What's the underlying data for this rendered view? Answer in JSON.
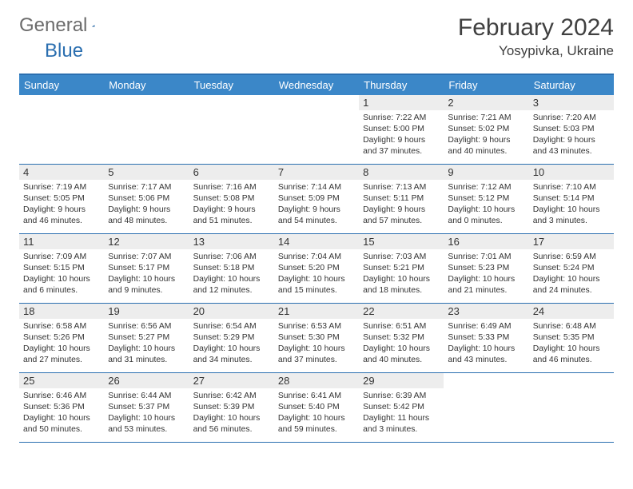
{
  "logo": {
    "part1": "General",
    "part2": "Blue"
  },
  "title": "February 2024",
  "location": "Yosypivka, Ukraine",
  "colors": {
    "header_bg": "#3b87c8",
    "header_text": "#ffffff",
    "border": "#2b6fb0",
    "daynum_bg": "#ededed",
    "text": "#333333",
    "logo_gray": "#6b6b6b",
    "logo_blue": "#2b6fb0",
    "background": "#ffffff"
  },
  "columns": [
    "Sunday",
    "Monday",
    "Tuesday",
    "Wednesday",
    "Thursday",
    "Friday",
    "Saturday"
  ],
  "weeks": [
    [
      {
        "n": "",
        "sr": "",
        "ss": "",
        "dl1": "",
        "dl2": ""
      },
      {
        "n": "",
        "sr": "",
        "ss": "",
        "dl1": "",
        "dl2": ""
      },
      {
        "n": "",
        "sr": "",
        "ss": "",
        "dl1": "",
        "dl2": ""
      },
      {
        "n": "",
        "sr": "",
        "ss": "",
        "dl1": "",
        "dl2": ""
      },
      {
        "n": "1",
        "sr": "Sunrise: 7:22 AM",
        "ss": "Sunset: 5:00 PM",
        "dl1": "Daylight: 9 hours",
        "dl2": "and 37 minutes."
      },
      {
        "n": "2",
        "sr": "Sunrise: 7:21 AM",
        "ss": "Sunset: 5:02 PM",
        "dl1": "Daylight: 9 hours",
        "dl2": "and 40 minutes."
      },
      {
        "n": "3",
        "sr": "Sunrise: 7:20 AM",
        "ss": "Sunset: 5:03 PM",
        "dl1": "Daylight: 9 hours",
        "dl2": "and 43 minutes."
      }
    ],
    [
      {
        "n": "4",
        "sr": "Sunrise: 7:19 AM",
        "ss": "Sunset: 5:05 PM",
        "dl1": "Daylight: 9 hours",
        "dl2": "and 46 minutes."
      },
      {
        "n": "5",
        "sr": "Sunrise: 7:17 AM",
        "ss": "Sunset: 5:06 PM",
        "dl1": "Daylight: 9 hours",
        "dl2": "and 48 minutes."
      },
      {
        "n": "6",
        "sr": "Sunrise: 7:16 AM",
        "ss": "Sunset: 5:08 PM",
        "dl1": "Daylight: 9 hours",
        "dl2": "and 51 minutes."
      },
      {
        "n": "7",
        "sr": "Sunrise: 7:14 AM",
        "ss": "Sunset: 5:09 PM",
        "dl1": "Daylight: 9 hours",
        "dl2": "and 54 minutes."
      },
      {
        "n": "8",
        "sr": "Sunrise: 7:13 AM",
        "ss": "Sunset: 5:11 PM",
        "dl1": "Daylight: 9 hours",
        "dl2": "and 57 minutes."
      },
      {
        "n": "9",
        "sr": "Sunrise: 7:12 AM",
        "ss": "Sunset: 5:12 PM",
        "dl1": "Daylight: 10 hours",
        "dl2": "and 0 minutes."
      },
      {
        "n": "10",
        "sr": "Sunrise: 7:10 AM",
        "ss": "Sunset: 5:14 PM",
        "dl1": "Daylight: 10 hours",
        "dl2": "and 3 minutes."
      }
    ],
    [
      {
        "n": "11",
        "sr": "Sunrise: 7:09 AM",
        "ss": "Sunset: 5:15 PM",
        "dl1": "Daylight: 10 hours",
        "dl2": "and 6 minutes."
      },
      {
        "n": "12",
        "sr": "Sunrise: 7:07 AM",
        "ss": "Sunset: 5:17 PM",
        "dl1": "Daylight: 10 hours",
        "dl2": "and 9 minutes."
      },
      {
        "n": "13",
        "sr": "Sunrise: 7:06 AM",
        "ss": "Sunset: 5:18 PM",
        "dl1": "Daylight: 10 hours",
        "dl2": "and 12 minutes."
      },
      {
        "n": "14",
        "sr": "Sunrise: 7:04 AM",
        "ss": "Sunset: 5:20 PM",
        "dl1": "Daylight: 10 hours",
        "dl2": "and 15 minutes."
      },
      {
        "n": "15",
        "sr": "Sunrise: 7:03 AM",
        "ss": "Sunset: 5:21 PM",
        "dl1": "Daylight: 10 hours",
        "dl2": "and 18 minutes."
      },
      {
        "n": "16",
        "sr": "Sunrise: 7:01 AM",
        "ss": "Sunset: 5:23 PM",
        "dl1": "Daylight: 10 hours",
        "dl2": "and 21 minutes."
      },
      {
        "n": "17",
        "sr": "Sunrise: 6:59 AM",
        "ss": "Sunset: 5:24 PM",
        "dl1": "Daylight: 10 hours",
        "dl2": "and 24 minutes."
      }
    ],
    [
      {
        "n": "18",
        "sr": "Sunrise: 6:58 AM",
        "ss": "Sunset: 5:26 PM",
        "dl1": "Daylight: 10 hours",
        "dl2": "and 27 minutes."
      },
      {
        "n": "19",
        "sr": "Sunrise: 6:56 AM",
        "ss": "Sunset: 5:27 PM",
        "dl1": "Daylight: 10 hours",
        "dl2": "and 31 minutes."
      },
      {
        "n": "20",
        "sr": "Sunrise: 6:54 AM",
        "ss": "Sunset: 5:29 PM",
        "dl1": "Daylight: 10 hours",
        "dl2": "and 34 minutes."
      },
      {
        "n": "21",
        "sr": "Sunrise: 6:53 AM",
        "ss": "Sunset: 5:30 PM",
        "dl1": "Daylight: 10 hours",
        "dl2": "and 37 minutes."
      },
      {
        "n": "22",
        "sr": "Sunrise: 6:51 AM",
        "ss": "Sunset: 5:32 PM",
        "dl1": "Daylight: 10 hours",
        "dl2": "and 40 minutes."
      },
      {
        "n": "23",
        "sr": "Sunrise: 6:49 AM",
        "ss": "Sunset: 5:33 PM",
        "dl1": "Daylight: 10 hours",
        "dl2": "and 43 minutes."
      },
      {
        "n": "24",
        "sr": "Sunrise: 6:48 AM",
        "ss": "Sunset: 5:35 PM",
        "dl1": "Daylight: 10 hours",
        "dl2": "and 46 minutes."
      }
    ],
    [
      {
        "n": "25",
        "sr": "Sunrise: 6:46 AM",
        "ss": "Sunset: 5:36 PM",
        "dl1": "Daylight: 10 hours",
        "dl2": "and 50 minutes."
      },
      {
        "n": "26",
        "sr": "Sunrise: 6:44 AM",
        "ss": "Sunset: 5:37 PM",
        "dl1": "Daylight: 10 hours",
        "dl2": "and 53 minutes."
      },
      {
        "n": "27",
        "sr": "Sunrise: 6:42 AM",
        "ss": "Sunset: 5:39 PM",
        "dl1": "Daylight: 10 hours",
        "dl2": "and 56 minutes."
      },
      {
        "n": "28",
        "sr": "Sunrise: 6:41 AM",
        "ss": "Sunset: 5:40 PM",
        "dl1": "Daylight: 10 hours",
        "dl2": "and 59 minutes."
      },
      {
        "n": "29",
        "sr": "Sunrise: 6:39 AM",
        "ss": "Sunset: 5:42 PM",
        "dl1": "Daylight: 11 hours",
        "dl2": "and 3 minutes."
      },
      {
        "n": "",
        "sr": "",
        "ss": "",
        "dl1": "",
        "dl2": ""
      },
      {
        "n": "",
        "sr": "",
        "ss": "",
        "dl1": "",
        "dl2": ""
      }
    ]
  ]
}
